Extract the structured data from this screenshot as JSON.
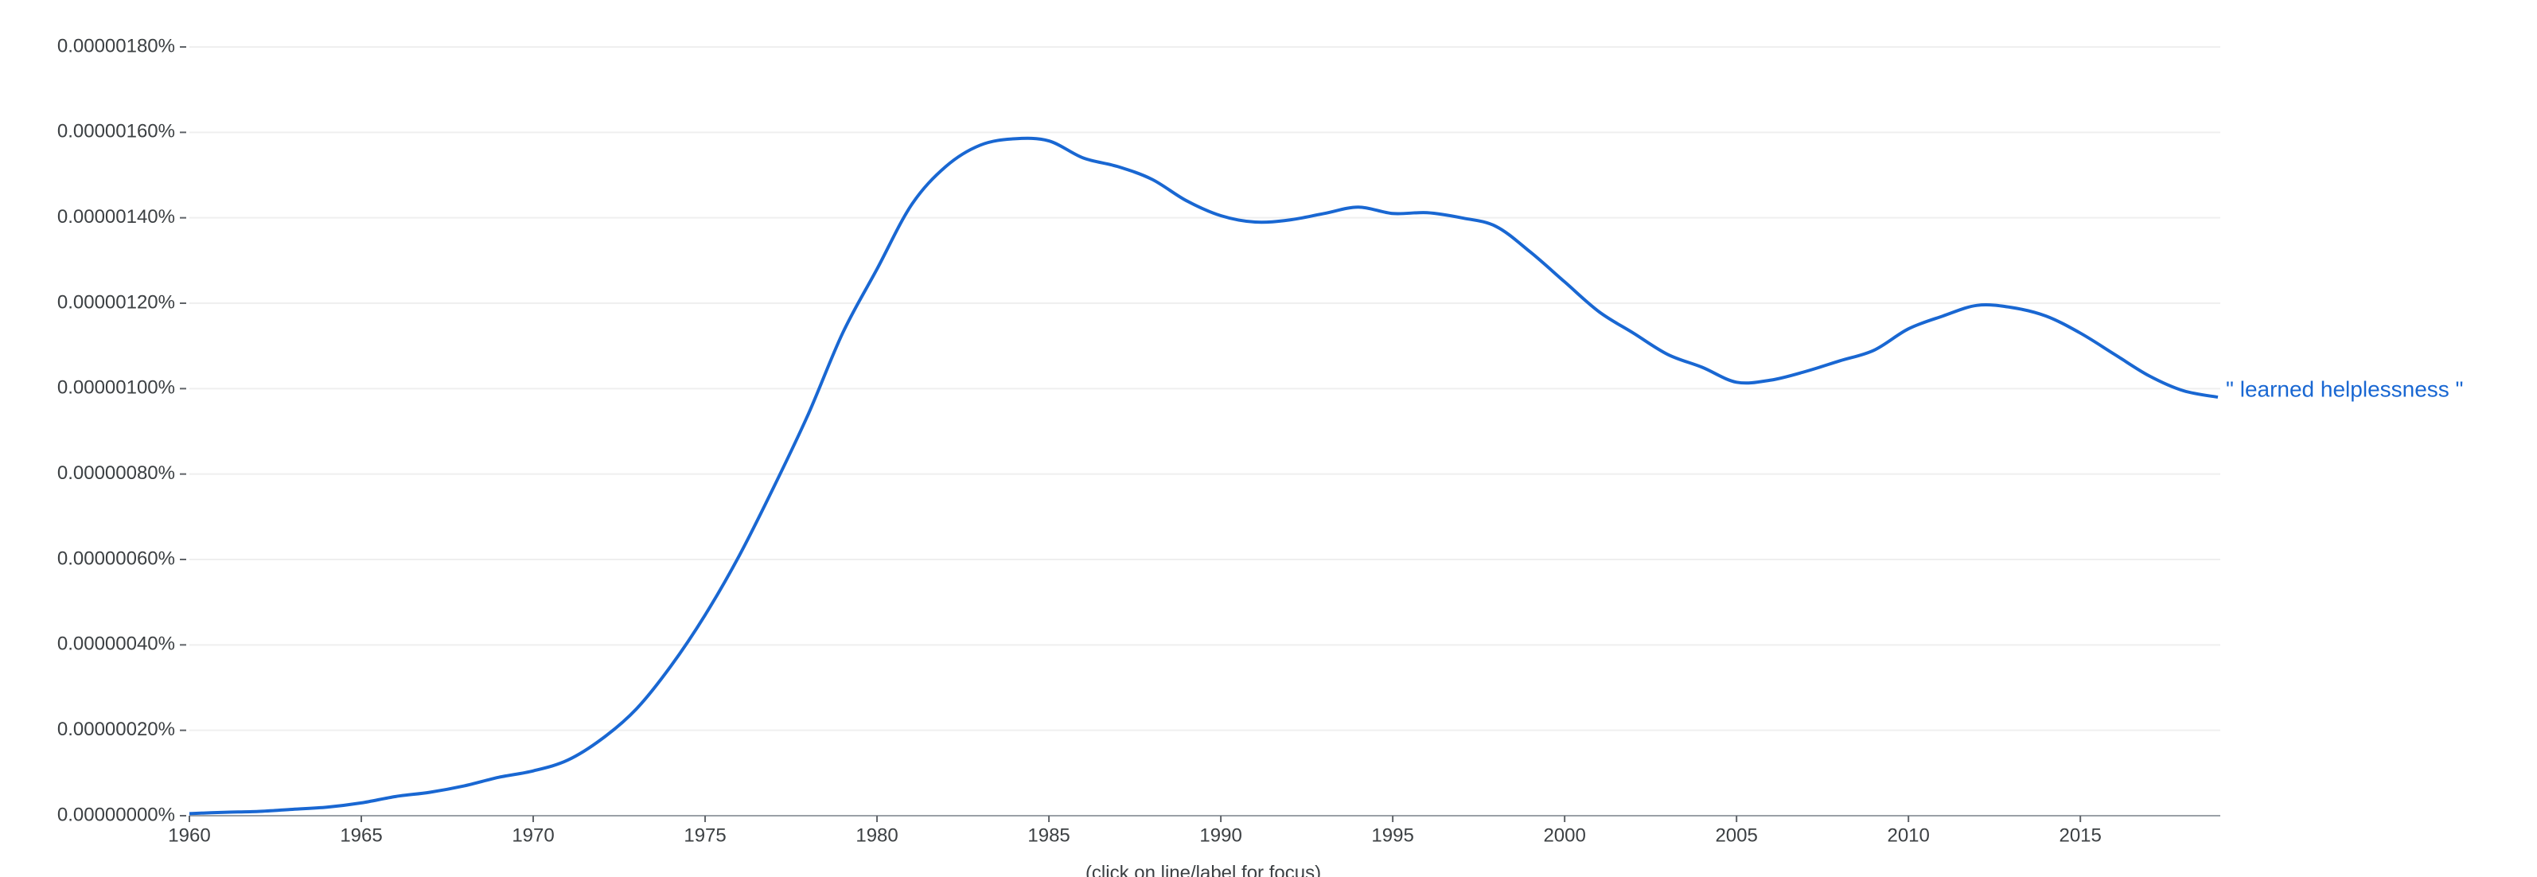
{
  "chart_data": {
    "type": "line",
    "subtitle": "(click on line/label for focus)",
    "x": [
      1960,
      1961,
      1962,
      1963,
      1964,
      1965,
      1966,
      1967,
      1968,
      1969,
      1970,
      1971,
      1972,
      1973,
      1974,
      1975,
      1976,
      1977,
      1978,
      1979,
      1980,
      1981,
      1982,
      1983,
      1984,
      1985,
      1986,
      1987,
      1988,
      1989,
      1990,
      1991,
      1992,
      1993,
      1994,
      1995,
      1996,
      1997,
      1998,
      1999,
      2000,
      2001,
      2002,
      2003,
      2004,
      2005,
      2006,
      2007,
      2008,
      2009,
      2010,
      2011,
      2012,
      2013,
      2014,
      2015,
      2016,
      2017,
      2018,
      2019
    ],
    "series": [
      {
        "name": "\" learned helplessness \"",
        "color": "#1967d2",
        "values": [
          5e-09,
          8e-09,
          1e-08,
          1.5e-08,
          2e-08,
          3e-08,
          4.5e-08,
          5.5e-08,
          7e-08,
          9e-08,
          1.05e-07,
          1.3e-07,
          1.8e-07,
          2.5e-07,
          3.5e-07,
          4.7e-07,
          6.1e-07,
          7.7e-07,
          9.4e-07,
          1.13e-06,
          1.28e-06,
          1.43e-06,
          1.52e-06,
          1.57e-06,
          1.585e-06,
          1.58e-06,
          1.54e-06,
          1.52e-06,
          1.49e-06,
          1.44e-06,
          1.405e-06,
          1.39e-06,
          1.395e-06,
          1.41e-06,
          1.425e-06,
          1.41e-06,
          1.412e-06,
          1.4e-06,
          1.38e-06,
          1.32e-06,
          1.25e-06,
          1.18e-06,
          1.13e-06,
          1.08e-06,
          1.05e-06,
          1.015e-06,
          1.02e-06,
          1.04e-06,
          1.065e-06,
          1.09e-06,
          1.14e-06,
          1.17e-06,
          1.195e-06,
          1.19e-06,
          1.17e-06,
          1.13e-06,
          1.08e-06,
          1.03e-06,
          9.95e-07,
          9.8e-07
        ]
      }
    ],
    "xlim": [
      1960,
      2019
    ],
    "xticks": [
      1960,
      1965,
      1970,
      1975,
      1980,
      1985,
      1990,
      1995,
      2000,
      2005,
      2010,
      2015
    ],
    "ylim": [
      0,
      1.8e-06
    ],
    "yticks": [
      {
        "value": 0,
        "label": "0.00000000%"
      },
      {
        "value": 2e-07,
        "label": "0.00000020%"
      },
      {
        "value": 4e-07,
        "label": "0.00000040%"
      },
      {
        "value": 6e-07,
        "label": "0.00000060%"
      },
      {
        "value": 8e-07,
        "label": "0.00000080%"
      },
      {
        "value": 1e-06,
        "label": "0.00000100%"
      },
      {
        "value": 1.2e-06,
        "label": "0.00000120%"
      },
      {
        "value": 1.4e-06,
        "label": "0.00000140%"
      },
      {
        "value": 1.6e-06,
        "label": "0.00000160%"
      },
      {
        "value": 1.8e-06,
        "label": "0.00000180%"
      }
    ],
    "grid": true
  }
}
